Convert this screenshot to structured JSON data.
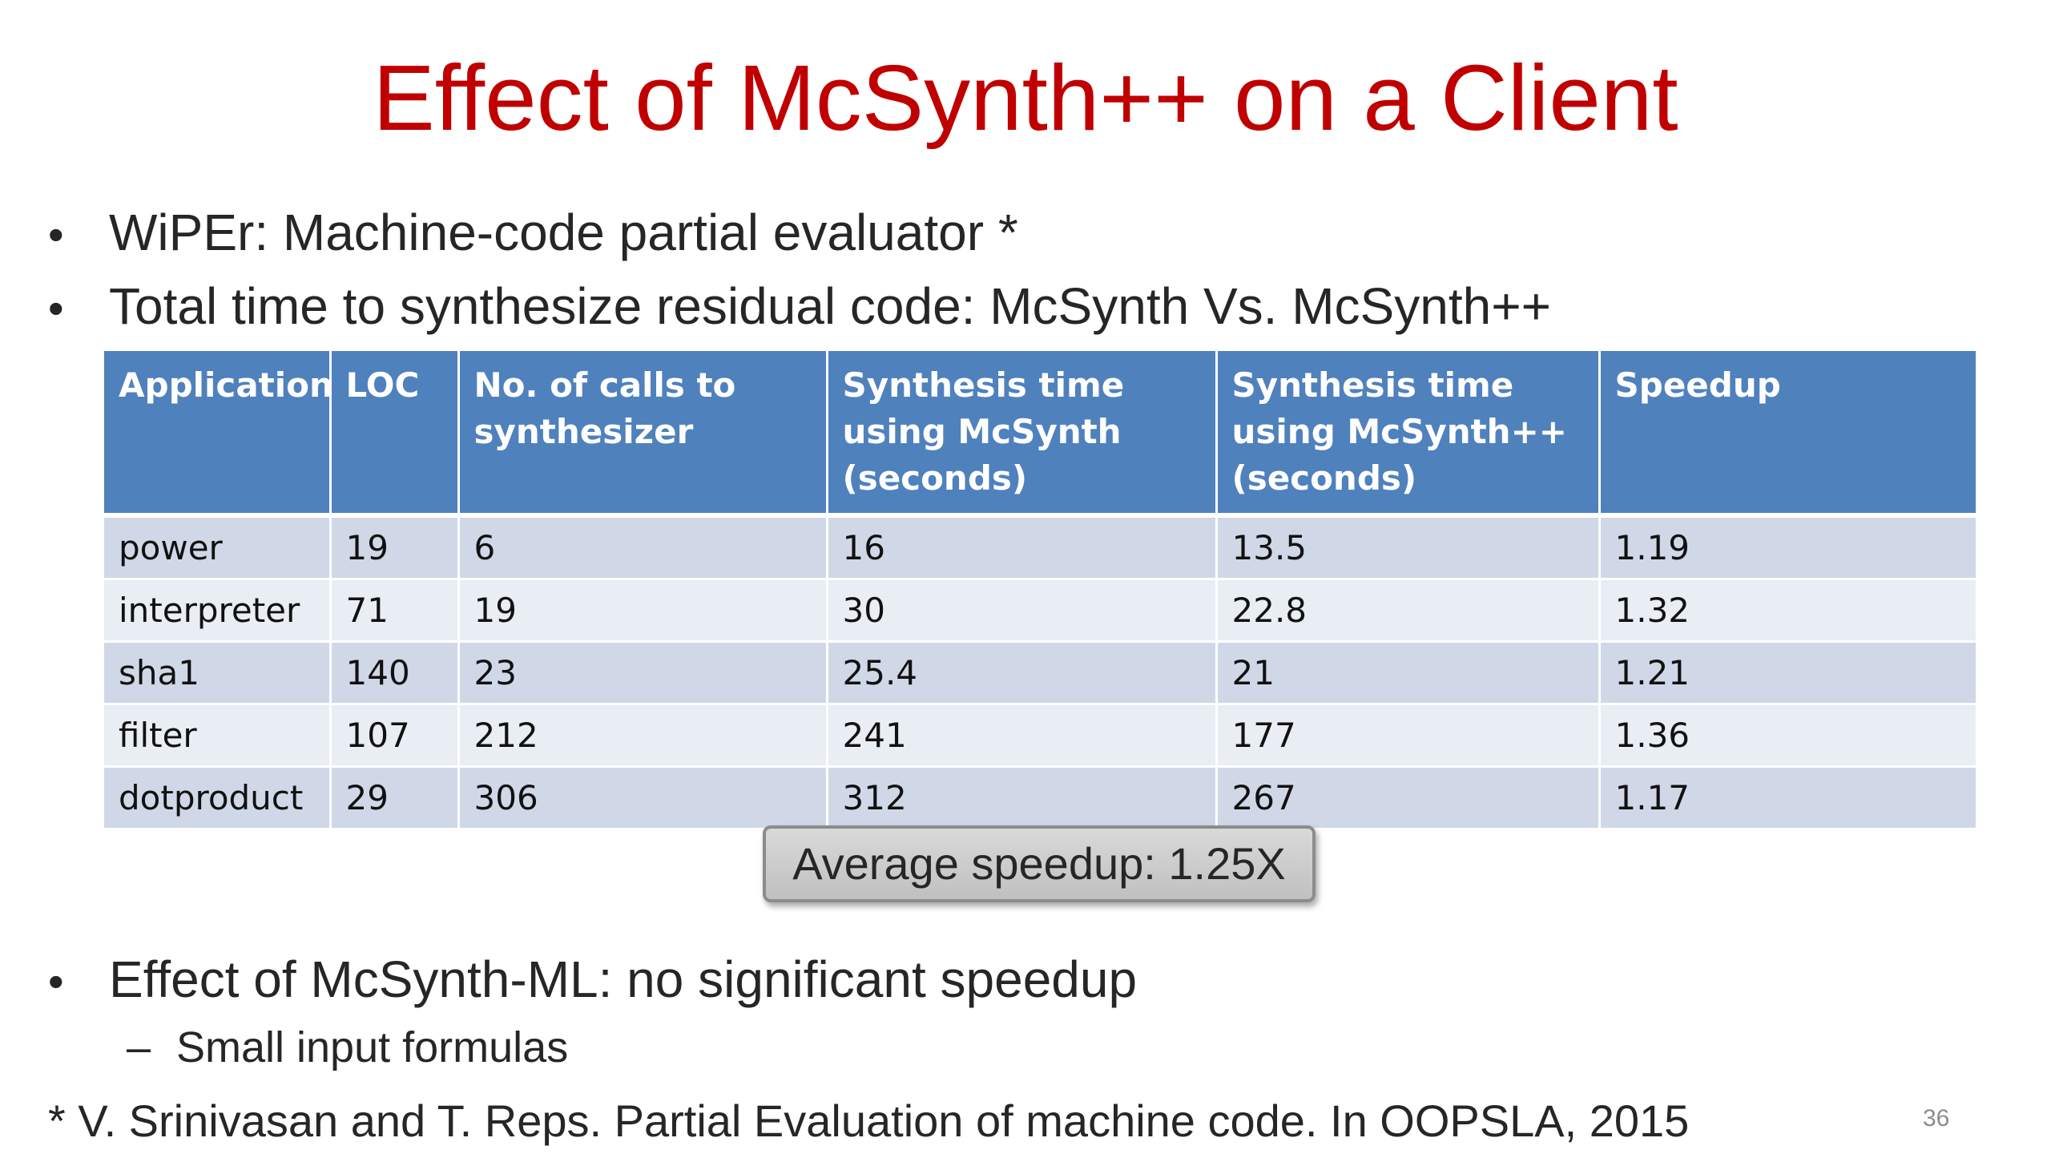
{
  "slide": {
    "title": "Effect of McSynth++ on a Client",
    "bullets": [
      {
        "marker": "•",
        "text": "WiPEr: Machine-code partial evaluator *"
      },
      {
        "marker": "•",
        "text": "Total time to synthesize residual code: McSynth Vs. McSynth++"
      },
      {
        "marker": "•",
        "text": "Effect of McSynth-ML: no significant speedup"
      }
    ],
    "sub_bullet": {
      "marker": "–",
      "text": "Small input formulas"
    },
    "average_box": "Average speedup: 1.25X",
    "footnote": "* V. Srinivasan and T. Reps. Partial Evaluation of machine code. In OOPSLA, 2015",
    "page_number": "36"
  },
  "table": {
    "headers": [
      "Application",
      "LOC",
      "No. of calls to synthesizer",
      "Synthesis time using McSynth (seconds)",
      "Synthesis time using McSynth++ (seconds)",
      "Speedup"
    ],
    "rows": [
      [
        "power",
        "19",
        "6",
        "16",
        "13.5",
        "1.19"
      ],
      [
        "interpreter",
        "71",
        "19",
        "30",
        "22.8",
        "1.32"
      ],
      [
        "sha1",
        "140",
        "23",
        "25.4",
        "21",
        "1.21"
      ],
      [
        "filter",
        "107",
        "212",
        "241",
        "177",
        "1.36"
      ],
      [
        "dotproduct",
        "29",
        "306",
        "312",
        "267",
        "1.17"
      ]
    ]
  },
  "colors": {
    "title": "#c00000",
    "header_bg": "#4f81bd",
    "row_odd": "#d0d8e8",
    "row_even": "#e9edf4"
  }
}
